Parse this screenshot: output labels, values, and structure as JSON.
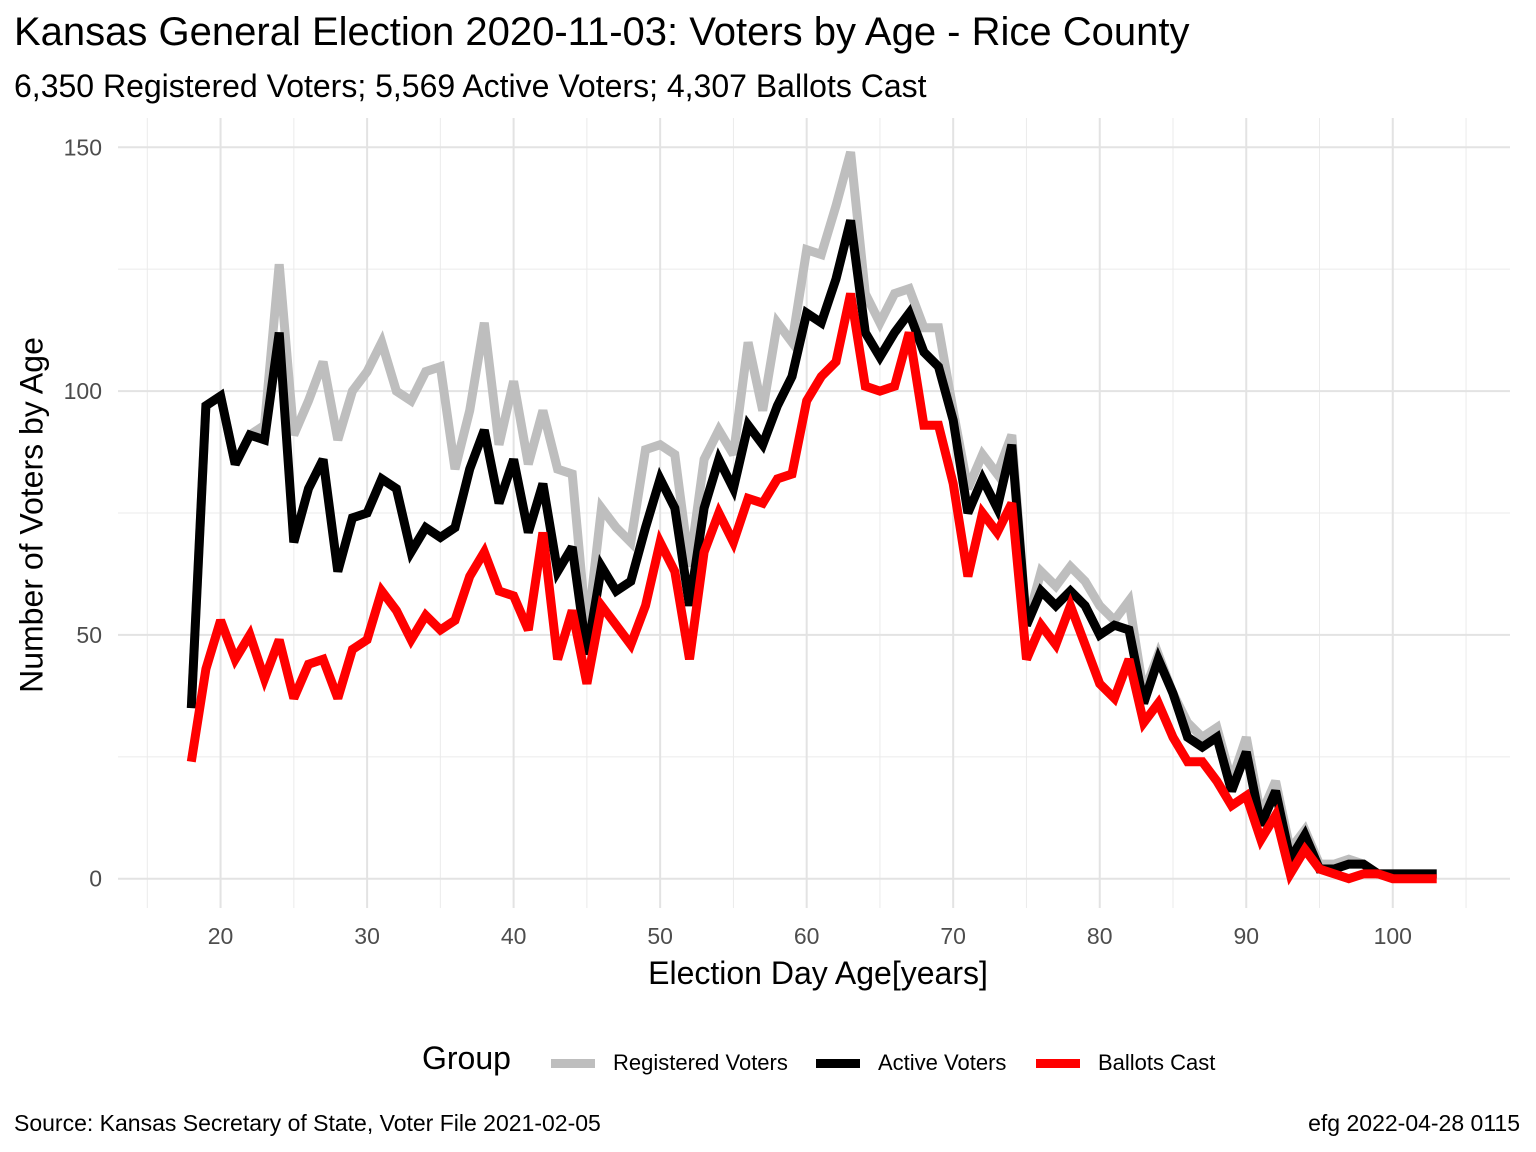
{
  "chart_data": {
    "type": "line",
    "title": "Kansas General Election 2020-11-03:  Voters by Age - Rice County",
    "subtitle": "6,350 Registered Voters; 5,569 Active Voters; 4,307 Ballots Cast",
    "xlabel": "Election Day Age[years]",
    "ylabel": "Number of Voters by Age",
    "xlim": [
      13,
      108
    ],
    "ylim": [
      -6,
      156
    ],
    "x_ticks": [
      20,
      30,
      40,
      50,
      60,
      70,
      80,
      90,
      100
    ],
    "y_ticks": [
      0,
      50,
      100,
      150
    ],
    "grid": true,
    "legend_position": "bottom",
    "legend_title": "Group",
    "x": [
      18,
      19,
      20,
      21,
      22,
      23,
      24,
      25,
      26,
      27,
      28,
      29,
      30,
      31,
      32,
      33,
      34,
      35,
      36,
      37,
      38,
      39,
      40,
      41,
      42,
      43,
      44,
      45,
      46,
      47,
      48,
      49,
      50,
      51,
      52,
      53,
      54,
      55,
      56,
      57,
      58,
      59,
      60,
      61,
      62,
      63,
      64,
      65,
      66,
      67,
      68,
      69,
      70,
      71,
      72,
      73,
      74,
      75,
      76,
      77,
      78,
      79,
      80,
      81,
      82,
      83,
      84,
      85,
      86,
      87,
      88,
      89,
      90,
      91,
      92,
      93,
      94,
      95,
      96,
      97,
      98,
      99,
      100,
      101,
      102,
      103
    ],
    "series": [
      {
        "name": "Registered Voters",
        "color": "#bebebe",
        "values": [
          35,
          97,
          99,
          85,
          91,
          93,
          126,
          91,
          98,
          106,
          90,
          100,
          104,
          110,
          100,
          98,
          104,
          105,
          84,
          96,
          114,
          89,
          102,
          85,
          96,
          84,
          83,
          50,
          76,
          72,
          69,
          88,
          89,
          87,
          64,
          86,
          92,
          87,
          110,
          96,
          114,
          110,
          129,
          128,
          138,
          149,
          120,
          114,
          120,
          121,
          113,
          113,
          96,
          80,
          87,
          83,
          91,
          52,
          63,
          60,
          64,
          61,
          56,
          53,
          57,
          38,
          46,
          38,
          32,
          29,
          31,
          20,
          29,
          13,
          20,
          6,
          10,
          3,
          3,
          4,
          3,
          1,
          1,
          1,
          1,
          1
        ]
      },
      {
        "name": "Active Voters",
        "color": "#000000",
        "values": [
          35,
          97,
          99,
          85,
          91,
          90,
          112,
          69,
          80,
          86,
          63,
          74,
          75,
          82,
          80,
          67,
          72,
          70,
          72,
          84,
          92,
          77,
          86,
          71,
          81,
          63,
          68,
          46,
          64,
          59,
          61,
          72,
          82,
          76,
          56,
          76,
          86,
          80,
          93,
          89,
          97,
          103,
          116,
          114,
          123,
          135,
          112,
          107,
          112,
          116,
          108,
          105,
          94,
          75,
          82,
          76,
          89,
          52,
          59,
          56,
          59,
          56,
          50,
          52,
          51,
          36,
          45,
          38,
          29,
          27,
          29,
          18,
          26,
          11,
          18,
          4,
          9,
          2,
          2,
          3,
          3,
          1,
          1,
          1,
          1,
          1
        ]
      },
      {
        "name": "Ballots Cast",
        "color": "#ff0000",
        "values": [
          24,
          43,
          53,
          45,
          50,
          41,
          49,
          37,
          44,
          45,
          37,
          47,
          49,
          59,
          55,
          49,
          54,
          51,
          53,
          62,
          67,
          59,
          58,
          51,
          71,
          45,
          55,
          40,
          56,
          52,
          48,
          56,
          69,
          63,
          45,
          67,
          75,
          69,
          78,
          77,
          82,
          83,
          98,
          103,
          106,
          120,
          101,
          100,
          101,
          112,
          93,
          93,
          81,
          62,
          75,
          71,
          77,
          45,
          52,
          48,
          56,
          48,
          40,
          37,
          45,
          32,
          36,
          29,
          24,
          24,
          20,
          15,
          17,
          8,
          13,
          1,
          6,
          2,
          1,
          0,
          1,
          1,
          0,
          0,
          0,
          0
        ]
      }
    ]
  },
  "footer": {
    "source": "Source:  Kansas Secretary of State, Voter File  2021-02-05",
    "credit": "efg 2022-04-28 0115"
  }
}
